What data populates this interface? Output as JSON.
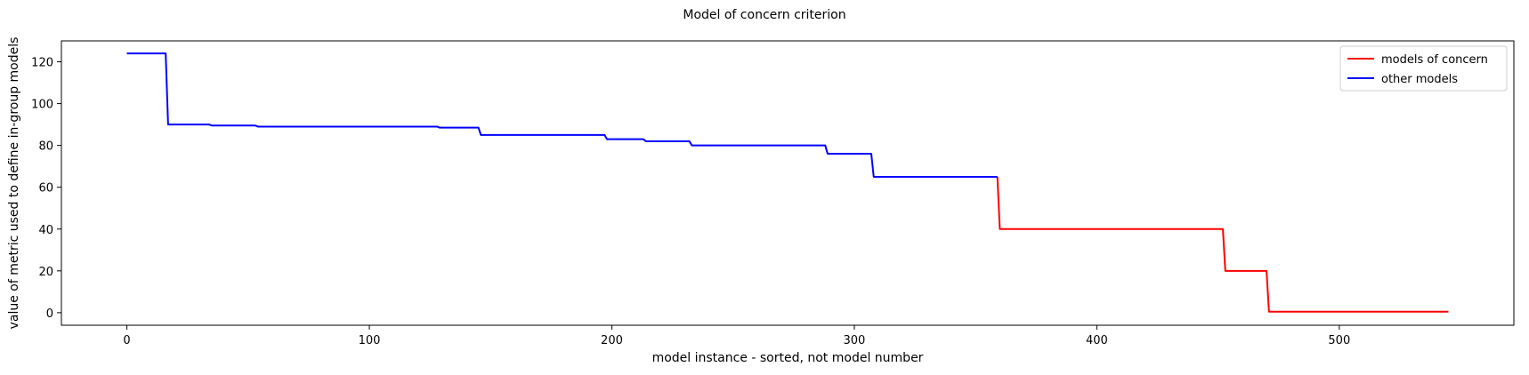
{
  "chart_data": {
    "type": "line",
    "title": "Model of concern criterion",
    "xlabel": "model instance - sorted, not model number",
    "ylabel": "value of metric used to define in-group models",
    "xlim": [
      -27,
      572
    ],
    "ylim": [
      -6,
      130
    ],
    "xticks": [
      0,
      100,
      200,
      300,
      400,
      500
    ],
    "yticks": [
      0,
      20,
      40,
      60,
      80,
      100,
      120
    ],
    "grid": false,
    "legend_position": "top-right",
    "series": [
      {
        "name": "models of concern",
        "color": "#ff0000",
        "points": [
          [
            359,
            65
          ],
          [
            360,
            40
          ],
          [
            452,
            40
          ],
          [
            453,
            20
          ],
          [
            470,
            20
          ],
          [
            471,
            0.5
          ],
          [
            545,
            0.5
          ]
        ]
      },
      {
        "name": "other models",
        "color": "#0000ff",
        "points": [
          [
            0,
            124
          ],
          [
            16,
            124
          ],
          [
            17,
            90
          ],
          [
            34,
            90
          ],
          [
            35,
            89.5
          ],
          [
            53,
            89.5
          ],
          [
            54,
            89
          ],
          [
            128,
            89
          ],
          [
            129,
            88.5
          ],
          [
            145,
            88.5
          ],
          [
            146,
            85
          ],
          [
            197,
            85
          ],
          [
            198,
            83
          ],
          [
            213,
            83
          ],
          [
            214,
            82
          ],
          [
            232,
            82
          ],
          [
            233,
            80
          ],
          [
            288,
            80
          ],
          [
            289,
            76
          ],
          [
            307,
            76
          ],
          [
            308,
            65
          ],
          [
            359,
            65
          ]
        ]
      }
    ]
  }
}
